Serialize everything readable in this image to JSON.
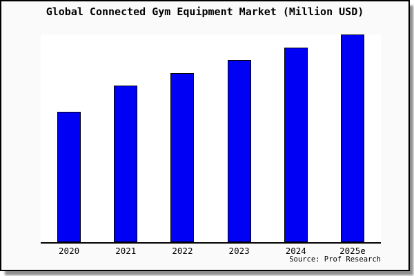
{
  "window": {
    "title": "Global Connected Gym Equipment Market (Million USD)",
    "source": "Source: Prof Research"
  },
  "colors": {
    "bar_fill": "#0000f5",
    "bar_border": "#000000",
    "window_background": "#fafafa",
    "plot_background": "#ffffff",
    "axis": "#000000",
    "window_border": "#000000",
    "shadow": "#8f8f8f"
  },
  "chart_data": {
    "type": "bar",
    "title": "Global Connected Gym Equipment Market (Million USD)",
    "categories": [
      "2020",
      "2021",
      "2022",
      "2023",
      "2024",
      "2025e"
    ],
    "values": [
      62.8,
      75.4,
      81.4,
      87.7,
      93.7,
      100
    ],
    "xlabel": "",
    "ylabel": "",
    "ylim": [
      0,
      100
    ],
    "y_axis_labels_visible": false,
    "grid": false,
    "legend": false,
    "bar_color": "#0000f5",
    "source": "Source: Prof Research"
  }
}
